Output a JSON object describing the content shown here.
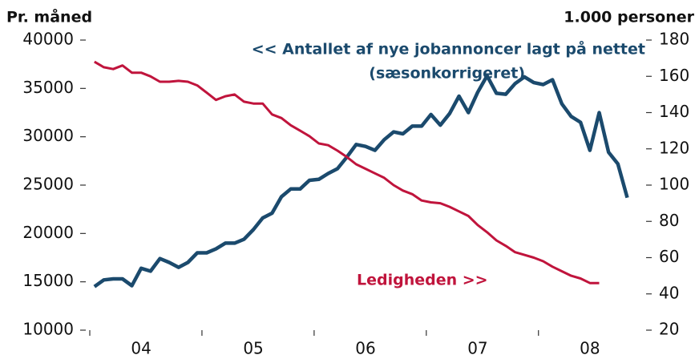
{
  "chart_data": {
    "type": "line",
    "y_label": "Pr. måned",
    "y2_label": "1.000 personer",
    "annotations": [
      "<< Antallet af nye jobannoncer lagt på nettet",
      "(sæsonkorrigeret)",
      "Ledigheden >>"
    ],
    "categories": [
      null,
      null,
      null,
      null,
      null,
      "04",
      null,
      null,
      null,
      null,
      null,
      null,
      null,
      null,
      null,
      null,
      null,
      "05",
      null,
      null,
      null,
      null,
      null,
      null,
      null,
      null,
      null,
      null,
      null,
      "06",
      null,
      null,
      null,
      null,
      null,
      null,
      null,
      null,
      null,
      null,
      null,
      "07",
      null,
      null,
      null,
      null,
      null,
      null,
      null,
      null,
      null,
      null,
      null,
      "08",
      null,
      null,
      null,
      null,
      null
    ],
    "series": [
      {
        "color": "#1b4a6d",
        "axis": "y",
        "values": [
          14500,
          15200,
          15300,
          15300,
          14600,
          16400,
          16100,
          17400,
          17000,
          16500,
          17000,
          18000,
          18000,
          18400,
          19000,
          19000,
          19400,
          20400,
          21600,
          22100,
          23800,
          24600,
          24600,
          25500,
          25600,
          26200,
          26700,
          27900,
          29200,
          29000,
          28600,
          29700,
          30500,
          30300,
          31100,
          31100,
          32300,
          31200,
          32400,
          34200,
          32500,
          34600,
          36300,
          34500,
          34400,
          35500,
          36200,
          35600,
          35400,
          35900,
          33400,
          32100,
          31500,
          28600,
          32500,
          28400,
          27200,
          23700,
          null
        ]
      },
      {
        "color": "#c0143c",
        "axis": "y2",
        "values": [
          168,
          165,
          164,
          166,
          162,
          162,
          160,
          157,
          157,
          157.5,
          157,
          155,
          151,
          147,
          149,
          150,
          146,
          145,
          145,
          139,
          137,
          133,
          130,
          127,
          123,
          122,
          119,
          115.5,
          111.5,
          109,
          106.5,
          104,
          100,
          97,
          95,
          91.5,
          90.5,
          90,
          88,
          85.5,
          83,
          78,
          74,
          69.5,
          66.5,
          63,
          61.5,
          60,
          58,
          55,
          52.5,
          50,
          48.5,
          46,
          46,
          null,
          null,
          null,
          null
        ]
      }
    ],
    "ylim": [
      10000,
      40000
    ],
    "yticks": [
      10000,
      15000,
      20000,
      25000,
      30000,
      35000,
      40000
    ],
    "y2lim": [
      20,
      180
    ],
    "y2ticks": [
      20,
      40,
      60,
      80,
      100,
      120,
      140,
      160,
      180
    ]
  }
}
